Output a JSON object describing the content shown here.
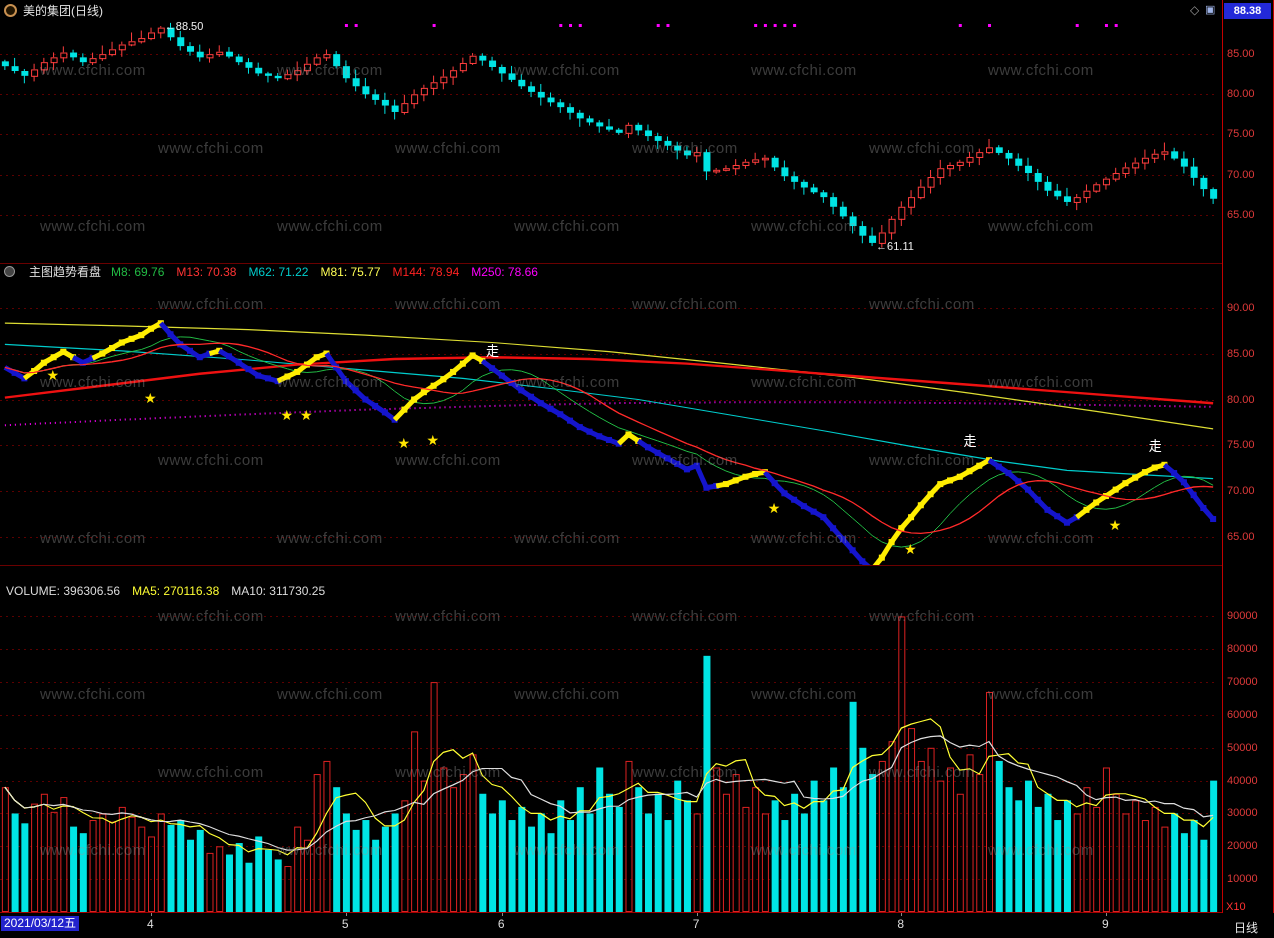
{
  "window": {
    "title": "美的集团(日线)",
    "quote": "88.38",
    "icons": {
      "diamond": "◇",
      "pin": "▣"
    }
  },
  "watermark": {
    "text": "www.cfchi.com"
  },
  "statusbar": {
    "date": "2021/03/12五",
    "period": "日线",
    "scale": "X10"
  },
  "panels": {
    "trend": {
      "header": {
        "title": "主图趋势看盘",
        "items": [
          {
            "text": "M8: 69.76",
            "color": "#22bb44"
          },
          {
            "text": "M13: 70.38",
            "color": "#ff3333"
          },
          {
            "text": "M62: 71.22",
            "color": "#00cccc"
          },
          {
            "text": "M81: 75.77",
            "color": "#ffff55"
          },
          {
            "text": "M144: 78.94",
            "color": "#ff2222"
          },
          {
            "text": "M250: 78.66",
            "color": "#ff00ff"
          }
        ]
      }
    },
    "volume": {
      "header": {
        "items": [
          {
            "text": "VOLUME: 396306.56",
            "color": "#dddddd"
          },
          {
            "text": "MA5: 270116.38",
            "color": "#ffff33"
          },
          {
            "text": "MA10: 311730.25",
            "color": "#dddddd"
          }
        ]
      }
    }
  },
  "chart_data": [
    {
      "type": "candlestick",
      "title": "price-panel",
      "ylim": [
        59,
        89
      ],
      "yticks": [
        {
          "v": 85,
          "t": "85.00"
        },
        {
          "v": 80,
          "t": "80.00"
        },
        {
          "v": 75,
          "t": "75.00"
        },
        {
          "v": 70,
          "t": "70.00"
        },
        {
          "v": 65,
          "t": "65.00"
        }
      ],
      "x_month_ticks": [
        {
          "label": "4",
          "i": 15
        },
        {
          "label": "5",
          "i": 35
        },
        {
          "label": "6",
          "i": 51
        },
        {
          "label": "7",
          "i": 71
        },
        {
          "label": "8",
          "i": 92
        },
        {
          "label": "9",
          "i": 113
        }
      ],
      "close": [
        83.5,
        82.9,
        82.3,
        83.1,
        84.0,
        84.6,
        85.2,
        84.6,
        84.0,
        84.5,
        85.0,
        85.6,
        86.2,
        86.6,
        87.0,
        87.7,
        88.3,
        87.1,
        86.0,
        85.3,
        84.6,
        85.0,
        85.3,
        84.7,
        84.0,
        83.3,
        82.6,
        82.3,
        82.0,
        82.5,
        83.0,
        83.8,
        84.6,
        85.0,
        83.5,
        82.0,
        81.0,
        80.0,
        79.3,
        78.6,
        77.8,
        78.9,
        80.0,
        80.8,
        81.5,
        82.2,
        83.0,
        83.9,
        84.8,
        84.2,
        83.4,
        82.6,
        81.8,
        81.0,
        80.3,
        79.6,
        79.0,
        78.4,
        77.7,
        77.0,
        76.5,
        76.0,
        75.6,
        75.2,
        76.2,
        75.5,
        74.8,
        74.2,
        73.6,
        73.0,
        72.4,
        72.8,
        70.4,
        70.6,
        70.8,
        71.2,
        71.6,
        71.9,
        72.1,
        70.9,
        69.8,
        69.1,
        68.4,
        67.8,
        67.2,
        66.0,
        64.8,
        63.6,
        62.4,
        61.5,
        62.8,
        64.5,
        66.0,
        67.2,
        68.5,
        69.7,
        70.8,
        71.2,
        71.6,
        72.2,
        72.8,
        73.4,
        72.7,
        72.0,
        71.1,
        70.2,
        69.1,
        68.0,
        67.3,
        66.6,
        67.2,
        68.0,
        68.8,
        69.5,
        70.2,
        70.9,
        71.5,
        72.1,
        72.6,
        72.9,
        72.0,
        71.0,
        69.6,
        68.2,
        67.0
      ],
      "annotations": [
        {
          "i": 16,
          "price": 88.5,
          "text": "←88.50"
        },
        {
          "i": 89,
          "price": 61.11,
          "text": "←61.11"
        }
      ],
      "signal_dot_indices": [
        35,
        36,
        44,
        57,
        58,
        59,
        67,
        68,
        77,
        78,
        79,
        80,
        81,
        98,
        101,
        110,
        113,
        114
      ],
      "colors": {
        "up": "#ff3e3e",
        "down": "#00e4e4",
        "dot": "#ff00ff"
      }
    },
    {
      "type": "line",
      "title": "主图趋势看盘",
      "ylim": [
        62,
        93
      ],
      "yticks": [
        {
          "v": 90,
          "t": "90.00"
        },
        {
          "v": 85,
          "t": "85.00"
        },
        {
          "v": 80,
          "t": "80.00"
        },
        {
          "v": 75,
          "t": "75.00"
        },
        {
          "v": 70,
          "t": "70.00"
        },
        {
          "v": 65,
          "t": "65.00"
        }
      ],
      "ribbon": {
        "source": "close",
        "up_color": "#ffee00",
        "down_color": "#1515cc"
      },
      "ma_overlays": [
        {
          "name": "M8",
          "period": 8,
          "color": "#22bb44",
          "width": 1
        },
        {
          "name": "M13",
          "period": 13,
          "color": "#ff2a2a",
          "width": 1.3
        }
      ],
      "lines": [
        {
          "name": "M250",
          "color": "#ff00ff",
          "width": 2,
          "dash": [
            1,
            4
          ],
          "points": [
            [
              0,
              77.2
            ],
            [
              12,
              77.8
            ],
            [
              25,
              78.4
            ],
            [
              37,
              78.9
            ],
            [
              50,
              79.3
            ],
            [
              62,
              79.6
            ],
            [
              74,
              79.7
            ],
            [
              87,
              79.7
            ],
            [
              99,
              79.6
            ],
            [
              112,
              79.4
            ],
            [
              124,
              79.2
            ]
          ]
        },
        {
          "name": "M81",
          "color": "#dddd33",
          "width": 1.2,
          "dash": null,
          "points": [
            [
              0,
              88.3
            ],
            [
              12,
              88.0
            ],
            [
              25,
              87.6
            ],
            [
              37,
              87.0
            ],
            [
              50,
              86.2
            ],
            [
              62,
              85.2
            ],
            [
              74,
              83.9
            ],
            [
              87,
              82.4
            ],
            [
              99,
              80.7
            ],
            [
              112,
              78.7
            ],
            [
              124,
              76.8
            ]
          ]
        },
        {
          "name": "M62",
          "color": "#00cccc",
          "width": 1.2,
          "dash": null,
          "points": [
            [
              0,
              86.0
            ],
            [
              12,
              85.3
            ],
            [
              25,
              84.3
            ],
            [
              37,
              83.2
            ],
            [
              47,
              82.3
            ],
            [
              56,
              81.2
            ],
            [
              65,
              80.0
            ],
            [
              74,
              78.4
            ],
            [
              84,
              76.6
            ],
            [
              93,
              74.9
            ],
            [
              102,
              73.3
            ],
            [
              109,
              72.3
            ],
            [
              117,
              71.8
            ],
            [
              124,
              71.4
            ]
          ]
        },
        {
          "name": "M144",
          "color": "#ee1111",
          "width": 2.4,
          "dash": null,
          "points": [
            [
              0,
              80.2
            ],
            [
              10,
              81.5
            ],
            [
              20,
              82.8
            ],
            [
              30,
              83.8
            ],
            [
              40,
              84.4
            ],
            [
              50,
              84.6
            ],
            [
              60,
              84.4
            ],
            [
              70,
              83.9
            ],
            [
              79,
              83.2
            ],
            [
              89,
              82.4
            ],
            [
              99,
              81.6
            ],
            [
              109,
              80.8
            ],
            [
              124,
              79.6
            ]
          ]
        }
      ],
      "stars": [
        [
          5,
          82.7
        ],
        [
          15,
          80.2
        ],
        [
          29,
          78.3
        ],
        [
          31,
          78.3
        ],
        [
          41,
          75.3
        ],
        [
          44,
          75.6
        ],
        [
          79,
          68.2
        ],
        [
          93,
          63.7
        ],
        [
          114,
          66.3
        ]
      ],
      "labels": [
        {
          "i": 50,
          "price": 85.3,
          "text": "走"
        },
        {
          "i": 99,
          "price": 75.5,
          "text": "走"
        },
        {
          "i": 118,
          "price": 74.9,
          "text": "走"
        }
      ]
    },
    {
      "type": "bar",
      "title": "VOLUME",
      "ylim": [
        0,
        95000
      ],
      "yticks": [
        {
          "v": 90000,
          "t": "90000"
        },
        {
          "v": 80000,
          "t": "80000"
        },
        {
          "v": 70000,
          "t": "70000"
        },
        {
          "v": 60000,
          "t": "60000"
        },
        {
          "v": 50000,
          "t": "50000"
        },
        {
          "v": 40000,
          "t": "40000"
        },
        {
          "v": 30000,
          "t": "30000"
        },
        {
          "v": 20000,
          "t": "20000"
        },
        {
          "v": 10000,
          "t": "10000"
        }
      ],
      "values": [
        38000,
        30000,
        27000,
        33000,
        36000,
        30500,
        35000,
        26000,
        24000,
        28000,
        30000,
        27500,
        32000,
        29000,
        26000,
        23000,
        30000,
        26500,
        28000,
        22000,
        25000,
        18000,
        20000,
        17500,
        21000,
        15000,
        23000,
        19000,
        16000,
        14000,
        26000,
        22000,
        42000,
        46000,
        38000,
        30000,
        25000,
        28000,
        22000,
        26000,
        30000,
        34000,
        55000,
        40000,
        70000,
        44000,
        38000,
        42000,
        48000,
        36000,
        30000,
        34000,
        28000,
        32000,
        26000,
        30000,
        24000,
        34000,
        28000,
        38000,
        30000,
        44000,
        36000,
        32000,
        46000,
        38000,
        30000,
        36000,
        28000,
        40000,
        34000,
        30000,
        78000,
        44000,
        36000,
        42000,
        32000,
        38000,
        30000,
        34000,
        28000,
        36000,
        30000,
        40000,
        34000,
        44000,
        38000,
        64000,
        50000,
        42000,
        46000,
        52000,
        90000,
        56000,
        46000,
        50000,
        40000,
        44000,
        36000,
        48000,
        42000,
        67000,
        46000,
        38000,
        34000,
        40000,
        32000,
        36000,
        28000,
        34000,
        30000,
        38000,
        32000,
        44000,
        36000,
        30000,
        34000,
        28000,
        32000,
        26000,
        30000,
        24000,
        28000,
        22000,
        40000
      ],
      "ma": [
        {
          "name": "MA5",
          "period": 5,
          "color": "#ffff33"
        },
        {
          "name": "MA10",
          "period": 10,
          "color": "#dddddd"
        }
      ],
      "colors": {
        "up": "#dd2222",
        "down": "#00e4e4"
      }
    }
  ]
}
